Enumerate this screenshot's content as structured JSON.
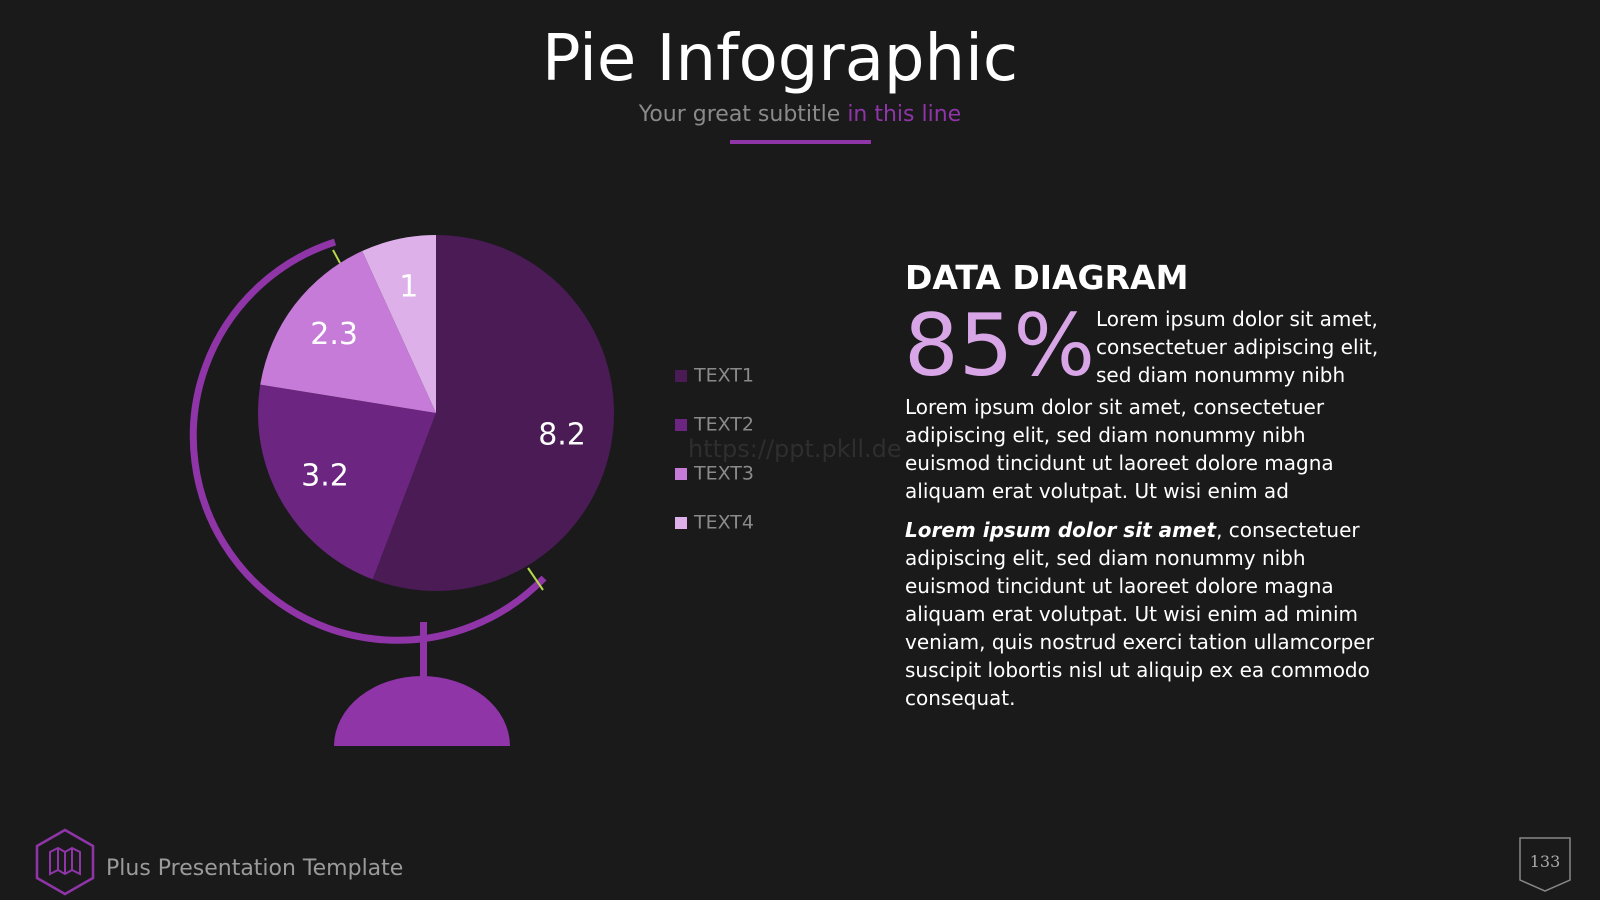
{
  "header": {
    "title": "Pie Infographic",
    "subtitle_main": "Your great subtitle",
    "subtitle_accent": "in this line"
  },
  "chart_data": {
    "type": "pie",
    "categories": [
      "TEXT1",
      "TEXT2",
      "TEXT3",
      "TEXT4"
    ],
    "values": [
      8.2,
      3.2,
      2.3,
      1
    ],
    "colors": [
      "#4a1b55",
      "#6c2580",
      "#c67bd8",
      "#ddb0e9"
    ]
  },
  "section": {
    "heading": "DATA DIAGRAM",
    "stat": "85%",
    "stat_text": "Lorem ipsum dolor sit amet, consectetuer adipiscing elit, sed diam nonummy nibh",
    "paragraph1": "Lorem ipsum dolor sit amet, consectetuer adipiscing elit, sed diam nonummy nibh euismod tincidunt ut laoreet dolore magna aliquam erat volutpat. Ut wisi enim ad",
    "paragraph2_bold": "Lorem ipsum dolor sit amet",
    "paragraph2_rest": ", consectetuer adipiscing elit, sed diam nonummy nibh euismod tincidunt ut laoreet dolore magna aliquam erat volutpat. Ut wisi enim ad minim veniam, quis nostrud exerci tation ullamcorper suscipit lobortis nisl ut aliquip ex ea commodo consequat."
  },
  "watermark": "https://ppt.pkll.de",
  "footer": {
    "text": "Plus Presentation Template",
    "page": "133"
  }
}
